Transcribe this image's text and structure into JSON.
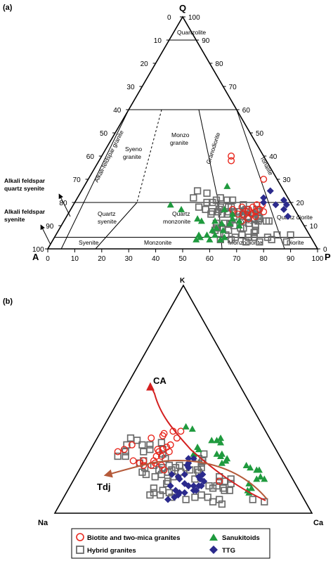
{
  "panel_a": {
    "panel_label": "(a)",
    "vertex_q": "Q",
    "vertex_a": "A",
    "vertex_p": "P",
    "left_ticks": [
      "0",
      "10",
      "20",
      "30",
      "40",
      "50",
      "60",
      "70",
      "80",
      "90",
      "100"
    ],
    "right_ticks": [
      "0",
      "10",
      "20",
      "30",
      "40",
      "50",
      "60",
      "70",
      "80",
      "90",
      "100"
    ],
    "bottom_ticks": [
      "0",
      "10",
      "20",
      "30",
      "40",
      "50",
      "60",
      "70",
      "80",
      "90",
      "100"
    ],
    "field_labels": {
      "quartzolite": "Quartzolite",
      "alkali_feldspar_granite": "Alkali-feldspar granite",
      "syeno_granite_1": "Syeno",
      "syeno_granite_2": "granite",
      "monzo_granite_1": "Monzo",
      "monzo_granite_2": "granite",
      "granodiorite": "Granodiorite",
      "tonalite": "Tonalite",
      "quartz_syenite_1": "Quartz",
      "quartz_syenite_2": "syenite",
      "quartz_monzonite_1": "Quartz",
      "quartz_monzonite_2": "monzonite",
      "quartz_monzodiorite_1": "Quartz",
      "quartz_monzodiorite_2": "monzodiorite",
      "quartz_diorite": "Quartz diorite",
      "syenite": "Syenite",
      "monzonite": "Monzonite",
      "monzodiorite": "Monzodiorite",
      "diorite": "Diorite"
    },
    "outside_labels": {
      "afqs_1": "Alkali feldspar",
      "afqs_2": "quartz syenite",
      "afs_1": "Alkali feldspar",
      "afs_2": "syenite"
    },
    "points": {
      "red_circles": [
        [
          19,
          13,
          68
        ],
        [
          19,
          11,
          70
        ],
        [
          17,
          17,
          66
        ],
        [
          16,
          15,
          69
        ],
        [
          18,
          19,
          63
        ],
        [
          17,
          13,
          70
        ],
        [
          15,
          17,
          68
        ],
        [
          15,
          20,
          65
        ],
        [
          16,
          12,
          72
        ],
        [
          18,
          15,
          67
        ],
        [
          17,
          23,
          60
        ],
        [
          16,
          18,
          66
        ],
        [
          15,
          22,
          63
        ],
        [
          14,
          16,
          70
        ],
        [
          13,
          19,
          68
        ],
        [
          12,
          22,
          66
        ],
        [
          40,
          12,
          48
        ],
        [
          38,
          13,
          49
        ],
        [
          30,
          5,
          65
        ]
      ],
      "green_triangles": [
        [
          27,
          20,
          53
        ],
        [
          12,
          23,
          65
        ],
        [
          10,
          24,
          66
        ],
        [
          15,
          24,
          61
        ],
        [
          13,
          25,
          62
        ],
        [
          17,
          26,
          57
        ],
        [
          11,
          27,
          62
        ],
        [
          11,
          30,
          59
        ],
        [
          12,
          32,
          56
        ],
        [
          8,
          31,
          61
        ],
        [
          9,
          33,
          58
        ],
        [
          8,
          35,
          57
        ],
        [
          6,
          35,
          59
        ],
        [
          5,
          32,
          63
        ],
        [
          4,
          34,
          62
        ],
        [
          4,
          38,
          58
        ],
        [
          6,
          38,
          56
        ],
        [
          5,
          41,
          54
        ],
        [
          6,
          41,
          53
        ],
        [
          4,
          43,
          53
        ],
        [
          13,
          38,
          49
        ],
        [
          12,
          37,
          51
        ],
        [
          17,
          42,
          41
        ],
        [
          19,
          45,
          36
        ]
      ],
      "blue_diamonds": [
        [
          25,
          5,
          70
        ],
        [
          22,
          9,
          69
        ],
        [
          20,
          10,
          70
        ],
        [
          17,
          4,
          79
        ],
        [
          14,
          4,
          82
        ],
        [
          19,
          6,
          75
        ],
        [
          19,
          2,
          79
        ],
        [
          21,
          2,
          77
        ]
      ],
      "gray_squares": [
        [
          15,
          26,
          59
        ],
        [
          15,
          28,
          57
        ],
        [
          16,
          29,
          55
        ],
        [
          16,
          31,
          53
        ],
        [
          15,
          32,
          53
        ],
        [
          17,
          33,
          50
        ],
        [
          16,
          25,
          59
        ],
        [
          16,
          23,
          61
        ],
        [
          15,
          20,
          65
        ],
        [
          16,
          19,
          65
        ],
        [
          14,
          21,
          65
        ],
        [
          14,
          19,
          67
        ],
        [
          13,
          17,
          70
        ],
        [
          13,
          15,
          72
        ],
        [
          12,
          13,
          75
        ],
        [
          12,
          12,
          76
        ],
        [
          16,
          14,
          70
        ],
        [
          15,
          16,
          69
        ],
        [
          15,
          20,
          65
        ],
        [
          14,
          24,
          62
        ],
        [
          18,
          24,
          58
        ],
        [
          18,
          27,
          55
        ],
        [
          17,
          28,
          55
        ],
        [
          19,
          18,
          63
        ],
        [
          21,
          23,
          56
        ],
        [
          22,
          25,
          53
        ],
        [
          21,
          27,
          52
        ],
        [
          20,
          29,
          51
        ],
        [
          20,
          31,
          49
        ],
        [
          16,
          21,
          63
        ],
        [
          11,
          27,
          62
        ],
        [
          11,
          29,
          60
        ],
        [
          9,
          31,
          60
        ],
        [
          9,
          33,
          58
        ],
        [
          11,
          32,
          57
        ],
        [
          8,
          34,
          58
        ],
        [
          9,
          23,
          68
        ],
        [
          9,
          24,
          67
        ],
        [
          10,
          18,
          72
        ],
        [
          12,
          16,
          72
        ],
        [
          8,
          19,
          73
        ],
        [
          7,
          20,
          73
        ],
        [
          8,
          29,
          63
        ],
        [
          10,
          26,
          64
        ],
        [
          11,
          20,
          69
        ],
        [
          5,
          21,
          74
        ],
        [
          5,
          16,
          79
        ],
        [
          6,
          12,
          82
        ],
        [
          6,
          7,
          87
        ],
        [
          3,
          10,
          87
        ],
        [
          5,
          28,
          67
        ],
        [
          6,
          31,
          63
        ],
        [
          4,
          30,
          66
        ],
        [
          4,
          34,
          62
        ],
        [
          3,
          25,
          72
        ],
        [
          3,
          20,
          77
        ],
        [
          4,
          15,
          81
        ],
        [
          5,
          23,
          72
        ],
        [
          6,
          25,
          69
        ],
        [
          22,
          35,
          43
        ],
        [
          18,
          35,
          47
        ],
        [
          18,
          23,
          59
        ],
        [
          17,
          18,
          65
        ],
        [
          17,
          14,
          69
        ],
        [
          24,
          29,
          47
        ],
        [
          21,
          21,
          58
        ],
        [
          25,
          32,
          43
        ],
        [
          14,
          15,
          71
        ]
      ]
    }
  },
  "panel_b": {
    "panel_label": "(b)",
    "vertex_k": "K",
    "vertex_na": "Na",
    "vertex_ca": "Ca",
    "trend_ca": "CA",
    "trend_tdj": "Tdj",
    "points": {
      "red_circles": [
        [
          21,
          48,
          31
        ],
        [
          19,
          48,
          33
        ],
        [
          21,
          52,
          27
        ],
        [
          22,
          50,
          28
        ],
        [
          21,
          55,
          24
        ],
        [
          22,
          56,
          22
        ],
        [
          23,
          54,
          23
        ],
        [
          23,
          58,
          19
        ],
        [
          23,
          50,
          27
        ],
        [
          25,
          46,
          29
        ],
        [
          25,
          48,
          27
        ],
        [
          27,
          46,
          27
        ],
        [
          27,
          42,
          31
        ],
        [
          29,
          42,
          29
        ],
        [
          30,
          40,
          30
        ],
        [
          28,
          46,
          26
        ],
        [
          28,
          44,
          28
        ],
        [
          33,
          36,
          31
        ],
        [
          34,
          41,
          25
        ],
        [
          35,
          40,
          25
        ],
        [
          36,
          36,
          28
        ],
        [
          36,
          33,
          31
        ],
        [
          14,
          29,
          57
        ],
        [
          33,
          46,
          21
        ],
        [
          28,
          59,
          13
        ],
        [
          27,
          62,
          11
        ],
        [
          30,
          55,
          15
        ]
      ],
      "green_triangles": [
        [
          37,
          28,
          35
        ],
        [
          38,
          30,
          32
        ],
        [
          32,
          23,
          45
        ],
        [
          32,
          21,
          47
        ],
        [
          33,
          19,
          48
        ],
        [
          31,
          20,
          49
        ],
        [
          28,
          30,
          42
        ],
        [
          26,
          33,
          41
        ],
        [
          29,
          30,
          41
        ],
        [
          26,
          24,
          50
        ],
        [
          26,
          22,
          52
        ],
        [
          25,
          23,
          52
        ],
        [
          24,
          21,
          55
        ],
        [
          23,
          22,
          55
        ],
        [
          22,
          24,
          54
        ],
        [
          21,
          15,
          64
        ],
        [
          20,
          14,
          66
        ],
        [
          19,
          12,
          69
        ],
        [
          19,
          11,
          70
        ],
        [
          16,
          12,
          72
        ],
        [
          15,
          11,
          74
        ],
        [
          15,
          14,
          71
        ],
        [
          13,
          18,
          69
        ],
        [
          11,
          18,
          71
        ],
        [
          10,
          20,
          70
        ],
        [
          9,
          20,
          71
        ]
      ],
      "blue_diamonds": [
        [
          17,
          46,
          37
        ],
        [
          16,
          44,
          40
        ],
        [
          17,
          41,
          42
        ],
        [
          20,
          38,
          42
        ],
        [
          22,
          37,
          41
        ],
        [
          24,
          34,
          42
        ],
        [
          24,
          36,
          40
        ],
        [
          21,
          38,
          41
        ],
        [
          17,
          34,
          49
        ],
        [
          16,
          36,
          48
        ],
        [
          15,
          36,
          49
        ],
        [
          14,
          35,
          51
        ],
        [
          12,
          37,
          51
        ],
        [
          12,
          38,
          50
        ],
        [
          12,
          40,
          48
        ],
        [
          10,
          41,
          49
        ],
        [
          10,
          40,
          50
        ],
        [
          12,
          42,
          46
        ],
        [
          13,
          43,
          44
        ],
        [
          9,
          45,
          46
        ],
        [
          9,
          47,
          44
        ],
        [
          10,
          48,
          42
        ],
        [
          8,
          48,
          44
        ],
        [
          7,
          50,
          43
        ],
        [
          6,
          53,
          41
        ],
        [
          12,
          49,
          39
        ],
        [
          15,
          44,
          41
        ]
      ],
      "gray_squares": [
        [
          32,
          52,
          16
        ],
        [
          30,
          57,
          13
        ],
        [
          33,
          54,
          13
        ],
        [
          30,
          51,
          19
        ],
        [
          27,
          59,
          14
        ],
        [
          25,
          60,
          15
        ],
        [
          25,
          63,
          12
        ],
        [
          27,
          52,
          21
        ],
        [
          30,
          48,
          22
        ],
        [
          28,
          49,
          23
        ],
        [
          31,
          43,
          26
        ],
        [
          28,
          44,
          28
        ],
        [
          26,
          45,
          29
        ],
        [
          24,
          45,
          31
        ],
        [
          23,
          54,
          23
        ],
        [
          22,
          56,
          22
        ],
        [
          21,
          51,
          28
        ],
        [
          20,
          48,
          32
        ],
        [
          19,
          50,
          31
        ],
        [
          21,
          45,
          34
        ],
        [
          18,
          47,
          35
        ],
        [
          19,
          45,
          36
        ],
        [
          20,
          43,
          37
        ],
        [
          21,
          41,
          38
        ],
        [
          18,
          42,
          40
        ],
        [
          16,
          46,
          38
        ],
        [
          20,
          39,
          41
        ],
        [
          19,
          38,
          43
        ],
        [
          19,
          35,
          46
        ],
        [
          18,
          35,
          47
        ],
        [
          20,
          33,
          47
        ],
        [
          22,
          32,
          46
        ],
        [
          23,
          31,
          46
        ],
        [
          24,
          32,
          44
        ],
        [
          26,
          29,
          45
        ],
        [
          17,
          50,
          33
        ],
        [
          16,
          53,
          31
        ],
        [
          17,
          56,
          27
        ],
        [
          18,
          57,
          25
        ],
        [
          20,
          55,
          25
        ],
        [
          14,
          49,
          37
        ],
        [
          13,
          50,
          37
        ],
        [
          15,
          38,
          47
        ],
        [
          12,
          34,
          54
        ],
        [
          12,
          31,
          57
        ],
        [
          11,
          33,
          56
        ],
        [
          11,
          29,
          60
        ],
        [
          10,
          27,
          63
        ],
        [
          10,
          29,
          61
        ],
        [
          13,
          25,
          62
        ],
        [
          14,
          27,
          59
        ],
        [
          14,
          29,
          57
        ],
        [
          16,
          28,
          56
        ],
        [
          15,
          24,
          61
        ],
        [
          7,
          37,
          56
        ],
        [
          8,
          39,
          53
        ],
        [
          7,
          42,
          51
        ],
        [
          6,
          46,
          48
        ],
        [
          7,
          51,
          42
        ],
        [
          8,
          55,
          37
        ],
        [
          9,
          57,
          34
        ],
        [
          9,
          51,
          40
        ],
        [
          10,
          53,
          37
        ],
        [
          11,
          56,
          33
        ],
        [
          8,
          59,
          33
        ],
        [
          6,
          20,
          74
        ],
        [
          5,
          16,
          79
        ],
        [
          5,
          36,
          59
        ],
        [
          6,
          33,
          61
        ],
        [
          4,
          33,
          63
        ]
      ]
    }
  },
  "legend": {
    "items": [
      {
        "label": "Biotite and two-mica granites",
        "marker": "red-circle"
      },
      {
        "label": "Sanukitoids",
        "marker": "green-triangle"
      },
      {
        "label": "Hybrid granites",
        "marker": "gray-square"
      },
      {
        "label": "TTG",
        "marker": "blue-diamond"
      }
    ]
  },
  "colors": {
    "red": "#e8261c",
    "green": "#1f9a3e",
    "blue": "#2b2a8c",
    "gray": "#6b6b6b",
    "curve_ca": "#d42020",
    "curve_tdj": "#b55a3a"
  }
}
